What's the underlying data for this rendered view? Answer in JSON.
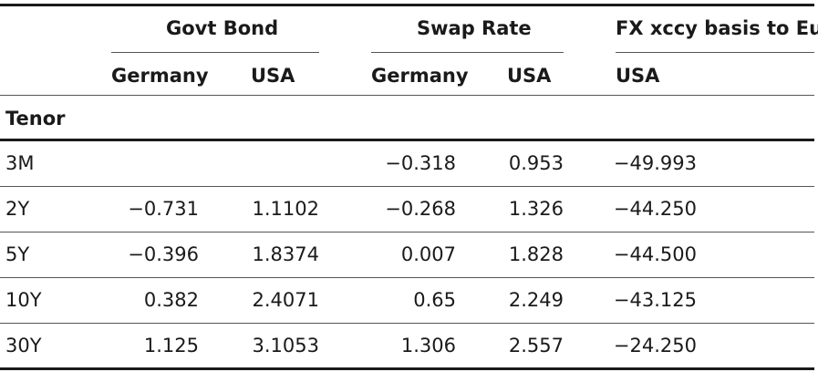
{
  "header": {
    "groups": [
      "Govt Bond",
      "Swap Rate",
      "FX xccy basis to Euro"
    ],
    "subcols": [
      "Germany",
      "USA",
      "Germany",
      "USA",
      "USA"
    ],
    "stub_label": "Tenor"
  },
  "rows": [
    {
      "tenor": "3M",
      "values": [
        "",
        "",
        "−0.318",
        "0.953",
        "−49.993"
      ]
    },
    {
      "tenor": "2Y",
      "values": [
        "−0.731",
        "1.1102",
        "−0.268",
        "1.326",
        "−44.250"
      ]
    },
    {
      "tenor": "5Y",
      "values": [
        "−0.396",
        "1.8374",
        "0.007",
        "1.828",
        "−44.500"
      ]
    },
    {
      "tenor": "10Y",
      "values": [
        "0.382",
        "2.4071",
        "0.65",
        "2.249",
        "−43.125"
      ]
    },
    {
      "tenor": "30Y",
      "values": [
        "1.125",
        "3.1053",
        "1.306",
        "2.557",
        "−24.250"
      ]
    }
  ]
}
